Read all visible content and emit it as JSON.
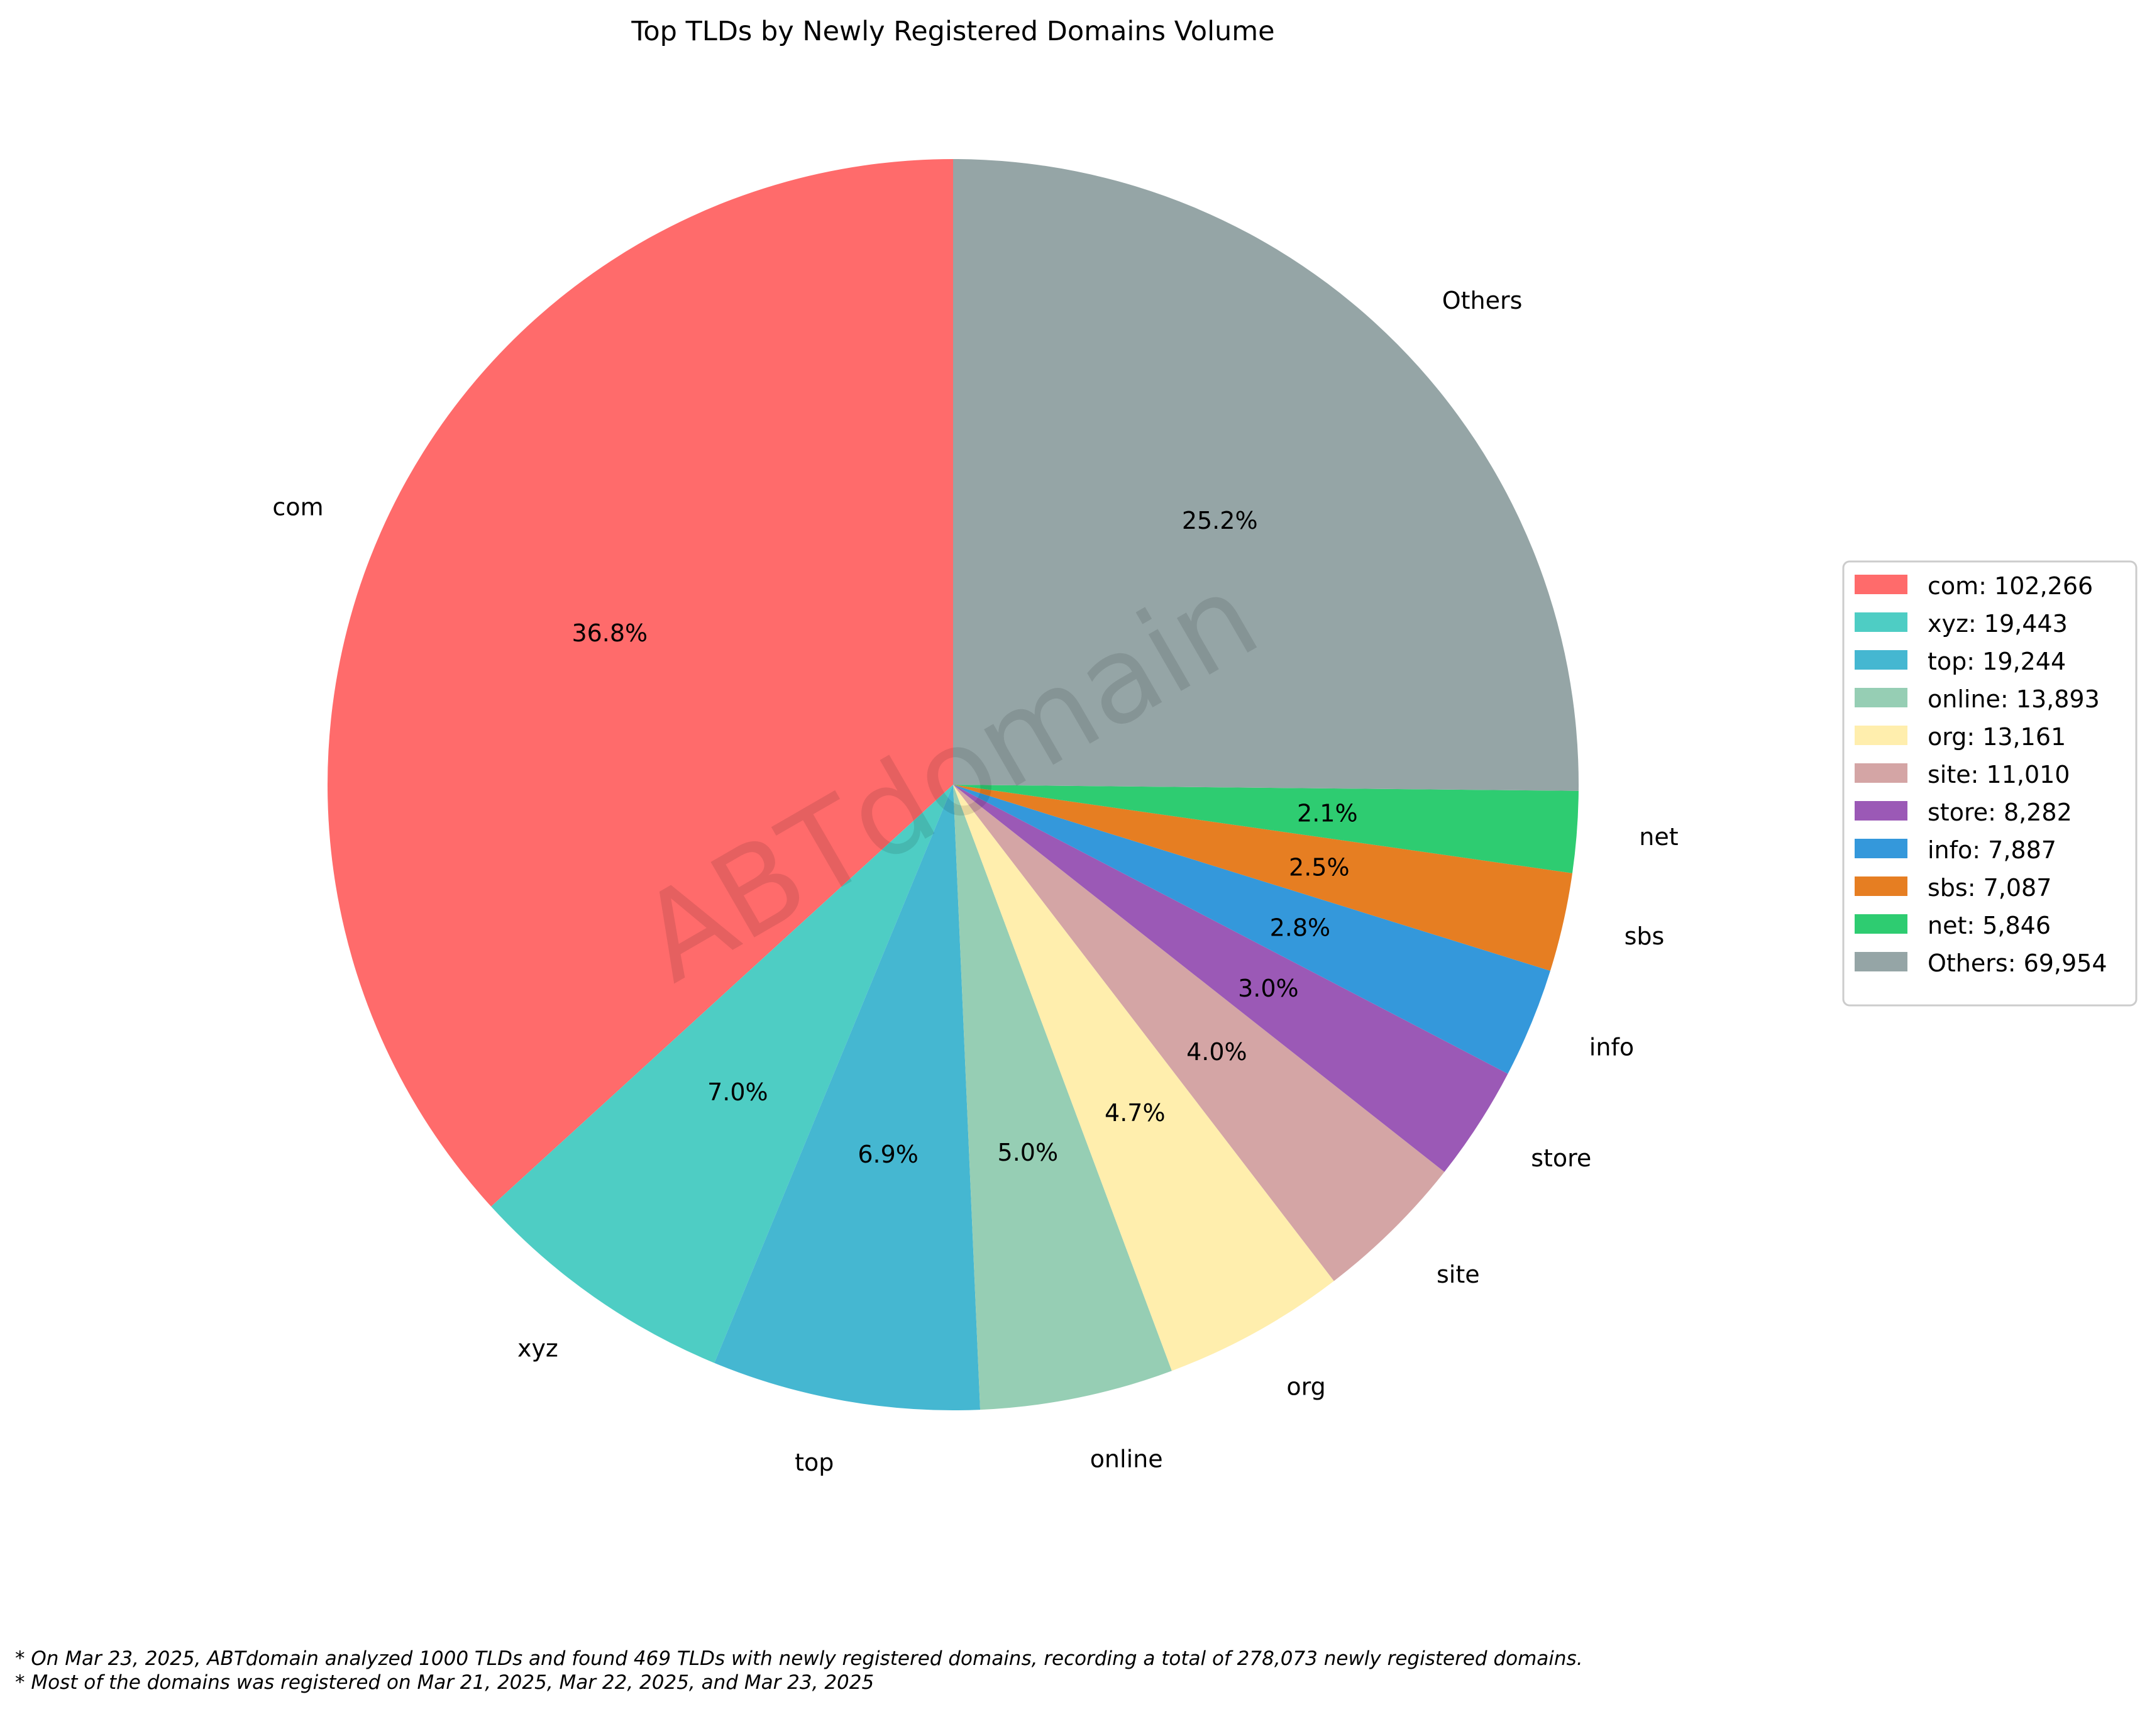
{
  "chart_data": {
    "type": "pie",
    "title": "Top TLDs by Newly Registered Domains Volume",
    "watermark": "ABTdomain",
    "slices": [
      {
        "label": "com",
        "value": 102266,
        "pct_label": "36.8%",
        "legend": "com: 102,266",
        "color": "#FF6B6B"
      },
      {
        "label": "xyz",
        "value": 19443,
        "pct_label": "7.0%",
        "legend": "xyz: 19,443",
        "color": "#4ECDC4"
      },
      {
        "label": "top",
        "value": 19244,
        "pct_label": "6.9%",
        "legend": "top: 19,244",
        "color": "#45B7D1"
      },
      {
        "label": "online",
        "value": 13893,
        "pct_label": "5.0%",
        "legend": "online: 13,893",
        "color": "#96CEB4"
      },
      {
        "label": "org",
        "value": 13161,
        "pct_label": "4.7%",
        "legend": "org: 13,161",
        "color": "#FFEEAD"
      },
      {
        "label": "site",
        "value": 11010,
        "pct_label": "4.0%",
        "legend": "site: 11,010",
        "color": "#D4A5A5"
      },
      {
        "label": "store",
        "value": 8282,
        "pct_label": "3.0%",
        "legend": "store: 8,282",
        "color": "#9B59B6"
      },
      {
        "label": "info",
        "value": 7887,
        "pct_label": "2.8%",
        "legend": "info: 7,887",
        "color": "#3498DB"
      },
      {
        "label": "sbs",
        "value": 7087,
        "pct_label": "2.5%",
        "legend": "sbs: 7,087",
        "color": "#E67E22"
      },
      {
        "label": "net",
        "value": 5846,
        "pct_label": "2.1%",
        "legend": "net: 5,846",
        "color": "#2ECC71"
      },
      {
        "label": "Others",
        "value": 69954,
        "pct_label": "25.2%",
        "legend": "Others: 69,954",
        "color": "#95A5A6"
      }
    ],
    "start_angle_deg": 90,
    "direction": "counterclockwise",
    "legend_placement": "center-right"
  },
  "footnotes": {
    "line1": "* On Mar 23, 2025, ABTdomain analyzed 1000 TLDs and found 469 TLDs with newly registered domains, recording a total of 278,073 newly registered domains.",
    "line2": "* Most of the domains was registered on Mar 21, 2025, Mar 22, 2025, and Mar 23, 2025"
  }
}
